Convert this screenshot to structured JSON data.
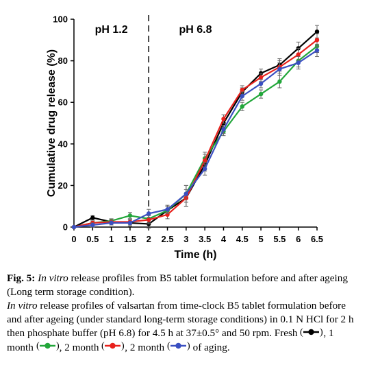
{
  "chart_data": {
    "type": "line",
    "xlabel": "Time (h)",
    "ylabel": "Cumulative drug release (%)",
    "xlim": [
      0,
      6.5
    ],
    "ylim": [
      0,
      100
    ],
    "x_ticks": [
      "0",
      "0.5",
      "1",
      "1.5",
      "2",
      "2.5",
      "3",
      "3.5",
      "4",
      "4.5",
      "5",
      "5.5",
      "6",
      "6.5"
    ],
    "y_ticks": [
      "0",
      "20",
      "40",
      "60",
      "80",
      "100"
    ],
    "annotations": [
      {
        "text": "pH 1.2",
        "x": 1.0
      },
      {
        "text": "pH 6.8",
        "x": 3.25
      }
    ],
    "divider_x": 2,
    "grid": false,
    "x": [
      0,
      0.5,
      1,
      1.5,
      2,
      2.5,
      3,
      3.5,
      4,
      4.5,
      5,
      5.5,
      6,
      6.5
    ],
    "series": [
      {
        "name": "Fresh",
        "color": "#000000",
        "values": [
          0,
          4.5,
          2.5,
          2,
          1.5,
          8,
          14,
          30,
          50,
          65,
          74,
          78,
          86,
          94
        ]
      },
      {
        "name": "1 month",
        "color": "#22a63a",
        "values": [
          0,
          2,
          3,
          5.5,
          4,
          8,
          16,
          33,
          46,
          58,
          64,
          70,
          80,
          87
        ]
      },
      {
        "name": "2 month",
        "color": "#e8211c",
        "values": [
          0,
          2,
          2.5,
          2.5,
          3.5,
          6,
          14,
          32,
          52,
          66,
          72,
          77,
          83,
          90
        ]
      },
      {
        "name": "2 month",
        "color": "#3a4fc1",
        "values": [
          0,
          1,
          2,
          2,
          6.5,
          8.5,
          16,
          28,
          47,
          63,
          69,
          76,
          79,
          85
        ]
      }
    ],
    "error_bars": [
      0,
      1,
      1,
      1.5,
      2,
      2,
      4,
      3,
      2,
      2,
      2,
      3,
      3,
      3
    ]
  },
  "caption": {
    "fig_label": "Fig. 5:",
    "title_italic": "In vitro",
    "title_rest": " release profiles from B5 tablet formulation before and after ageing (Long term storage condition).",
    "body_italic": "In vitro",
    "body_rest": " release profiles of valsartan from time-clock B5 tablet formulation before and after ageing (under standard long-term storage conditions) in 0.1 N HCl for 2 h then phosphate buffer (pH 6.8) for 4.5 h at 37±0.5° and 50 rpm. Fresh",
    "sep1": ", 1 month",
    "sep2": ",",
    "line2_start": "2 month",
    "sep3": ", 2 month",
    "tail": " of aging."
  }
}
